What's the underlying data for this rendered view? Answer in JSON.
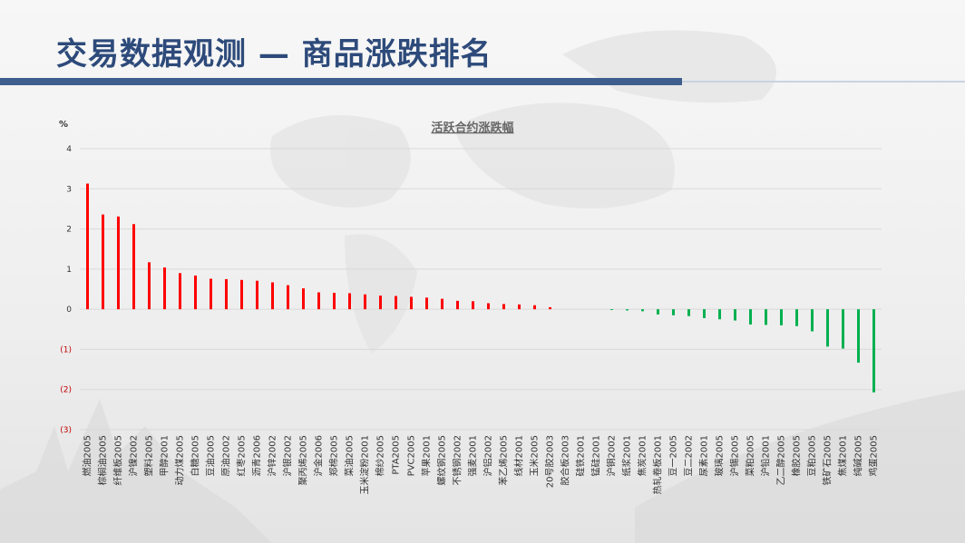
{
  "header": {
    "title": "交易数据观测 — 商品涨跌排名"
  },
  "colors": {
    "up": "#ff0000",
    "down": "#00b050",
    "title": "#2d4a7a",
    "bar": "#3e5f8e"
  },
  "chart_data": {
    "type": "bar",
    "title": "活跃合约涨跌幅",
    "ylabel": "%",
    "xlabel": "",
    "ylim": [
      -3,
      4
    ],
    "yticks": [
      {
        "value": 4,
        "label": "4"
      },
      {
        "value": 3,
        "label": "3"
      },
      {
        "value": 2,
        "label": "2"
      },
      {
        "value": 1,
        "label": "1"
      },
      {
        "value": 0,
        "label": "0"
      },
      {
        "value": -1,
        "label": "(1)"
      },
      {
        "value": -2,
        "label": "(2)"
      },
      {
        "value": -3,
        "label": "(3)"
      }
    ],
    "grid": true,
    "categories": [
      "燃油2005",
      "棕榈油2005",
      "纤维板2005",
      "沪镍2002",
      "塑料2005",
      "甲醇2001",
      "动力煤2005",
      "白糖2005",
      "豆油2005",
      "原油2002",
      "红枣2005",
      "沥青2006",
      "沪锌2002",
      "沪银2002",
      "聚丙烯2005",
      "沪金2006",
      "郑棉2005",
      "菜油2005",
      "玉米淀粉2001",
      "棉纱2005",
      "PTA2005",
      "PVC2005",
      "苹果2001",
      "螺纹钢2005",
      "不锈钢2002",
      "强麦2001",
      "沪铝2002",
      "苯乙烯2005",
      "线材2001",
      "玉米2005",
      "20号胶2003",
      "胶合板2003",
      "硅铁2001",
      "锰硅2001",
      "沪铜2002",
      "纸浆2001",
      "焦炭2001",
      "热轧卷板2001",
      "豆一2005",
      "豆二2002",
      "尿素2001",
      "玻璃2005",
      "沪锡2005",
      "菜粕2005",
      "沪铅2001",
      "乙二醇2005",
      "橡胶2005",
      "豆粕2005",
      "铁矿石2005",
      "焦煤2001",
      "纯碱2005",
      "鸡蛋2005"
    ],
    "values": [
      3.13,
      2.36,
      2.31,
      2.12,
      1.17,
      1.04,
      0.9,
      0.84,
      0.76,
      0.75,
      0.73,
      0.71,
      0.67,
      0.6,
      0.52,
      0.42,
      0.41,
      0.4,
      0.37,
      0.34,
      0.33,
      0.31,
      0.29,
      0.26,
      0.21,
      0.2,
      0.15,
      0.13,
      0.12,
      0.1,
      0.05,
      0.0,
      0.0,
      0.0,
      -0.02,
      -0.03,
      -0.05,
      -0.13,
      -0.15,
      -0.17,
      -0.22,
      -0.25,
      -0.28,
      -0.38,
      -0.39,
      -0.4,
      -0.42,
      -0.55,
      -0.93,
      -0.98,
      -1.33,
      -2.07
    ]
  }
}
